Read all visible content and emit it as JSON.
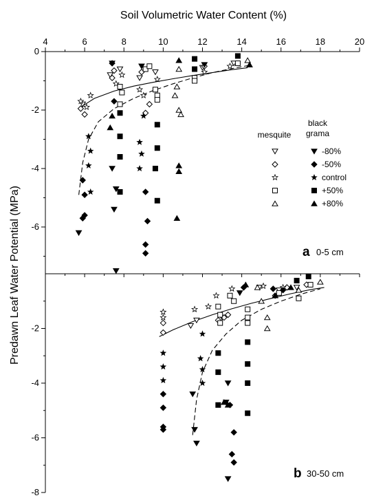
{
  "chart_data": [
    {
      "panel": "a",
      "panel_label": "0-5 cm",
      "type": "scatter",
      "xlabel": "Soil Volumetric Water Content (%)",
      "ylabel": "Predawn Leaf Water Potential (MPa)",
      "xlim": [
        4,
        20
      ],
      "ylim": [
        -7.6,
        0
      ],
      "x_ticks": [
        4,
        6,
        8,
        10,
        12,
        14,
        16,
        18,
        20
      ],
      "y_ticks": [
        0,
        -2,
        -4,
        -6
      ],
      "x_axis_position": "top",
      "legend": {
        "position": "right-middle",
        "headers": [
          "mesquite",
          "black grama"
        ],
        "treatments": [
          "-80%",
          "-50%",
          "control",
          "+50%",
          "+80%"
        ]
      },
      "series": [
        {
          "species": "mesquite",
          "treatment": "-80%",
          "marker": "triangle-down-open",
          "points": [
            [
              5.9,
              -1.8
            ],
            [
              7.3,
              -0.8
            ],
            [
              7.8,
              -0.6
            ],
            [
              8.8,
              -0.9
            ],
            [
              9.6,
              -0.7
            ],
            [
              12.0,
              -0.55
            ],
            [
              13.6,
              -0.4
            ]
          ]
        },
        {
          "species": "mesquite",
          "treatment": "-50%",
          "marker": "diamond-open",
          "points": [
            [
              5.8,
              -1.95
            ],
            [
              6.0,
              -2.15
            ],
            [
              7.4,
              -0.9
            ],
            [
              7.5,
              -0.65
            ],
            [
              8.9,
              -0.7
            ],
            [
              9.1,
              -2.1
            ],
            [
              9.3,
              -1.8
            ],
            [
              12.1,
              -0.5
            ]
          ]
        },
        {
          "species": "mesquite",
          "treatment": "control",
          "marker": "star-open",
          "points": [
            [
              5.8,
              -1.7
            ],
            [
              6.1,
              -1.9
            ],
            [
              6.3,
              -1.5
            ],
            [
              7.6,
              -1.1
            ],
            [
              7.9,
              -0.8
            ],
            [
              8.8,
              -1.3
            ],
            [
              9.0,
              -1.5
            ],
            [
              9.7,
              -0.95
            ],
            [
              12.1,
              -0.7
            ],
            [
              13.4,
              -0.5
            ]
          ]
        },
        {
          "species": "mesquite",
          "treatment": "+50%",
          "marker": "square-open",
          "points": [
            [
              7.8,
              -1.2
            ],
            [
              7.9,
              -1.4
            ],
            [
              7.8,
              -1.8
            ],
            [
              9.1,
              -0.6
            ],
            [
              9.3,
              -0.5
            ],
            [
              9.6,
              -1.3
            ],
            [
              9.7,
              -1.5
            ],
            [
              9.7,
              -1.65
            ],
            [
              11.6,
              -0.9
            ],
            [
              11.6,
              -1.0
            ],
            [
              13.8,
              -0.4
            ]
          ]
        },
        {
          "species": "mesquite",
          "treatment": "+80%",
          "marker": "triangle-up-open",
          "points": [
            [
              10.8,
              -0.6
            ],
            [
              10.7,
              -1.2
            ],
            [
              10.6,
              -1.5
            ],
            [
              10.8,
              -2.0
            ],
            [
              10.9,
              -2.15
            ],
            [
              14.3,
              -0.3
            ]
          ]
        },
        {
          "species": "black grama",
          "treatment": "-80%",
          "marker": "triangle-down-filled",
          "points": [
            [
              5.7,
              -6.2
            ],
            [
              7.5,
              -5.4
            ],
            [
              7.6,
              -7.5
            ],
            [
              7.4,
              -4.0
            ],
            [
              7.6,
              -4.7
            ],
            [
              7.4,
              -0.4
            ],
            [
              8.9,
              -0.5
            ],
            [
              12.1,
              -0.45
            ]
          ]
        },
        {
          "species": "black grama",
          "treatment": "-50%",
          "marker": "diamond-filled",
          "points": [
            [
              5.9,
              -4.4
            ],
            [
              6.0,
              -4.9
            ],
            [
              5.9,
              -5.7
            ],
            [
              6.0,
              -5.6
            ],
            [
              7.4,
              -0.4
            ],
            [
              9.1,
              -4.8
            ],
            [
              9.2,
              -5.8
            ],
            [
              9.1,
              -6.6
            ],
            [
              9.1,
              -6.9
            ],
            [
              7.5,
              -1.7
            ]
          ]
        },
        {
          "species": "black grama",
          "treatment": "control",
          "marker": "star-filled",
          "points": [
            [
              6.2,
              -2.9
            ],
            [
              6.3,
              -3.4
            ],
            [
              6.2,
              -3.9
            ],
            [
              6.3,
              -4.8
            ],
            [
              8.8,
              -3.1
            ],
            [
              8.9,
              -3.5
            ],
            [
              8.8,
              -4.0
            ],
            [
              9.0,
              -2.2
            ]
          ]
        },
        {
          "species": "black grama",
          "treatment": "+50%",
          "marker": "square-filled",
          "points": [
            [
              7.8,
              -2.1
            ],
            [
              7.8,
              -2.9
            ],
            [
              7.8,
              -3.6
            ],
            [
              7.8,
              -4.8
            ],
            [
              9.7,
              -2.5
            ],
            [
              9.7,
              -3.3
            ],
            [
              9.6,
              -4.0
            ],
            [
              9.7,
              -5.1
            ],
            [
              11.6,
              -0.25
            ],
            [
              11.6,
              -0.6
            ],
            [
              13.8,
              -0.15
            ]
          ]
        },
        {
          "species": "black grama",
          "treatment": "+80%",
          "marker": "triangle-up-filled",
          "points": [
            [
              7.4,
              -2.2
            ],
            [
              7.3,
              -2.6
            ],
            [
              10.8,
              -0.3
            ],
            [
              10.8,
              -3.9
            ],
            [
              10.8,
              -4.1
            ],
            [
              10.7,
              -5.7
            ],
            [
              14.4,
              -0.45
            ]
          ]
        }
      ],
      "fits": [
        {
          "style": "solid",
          "points": [
            [
              5.8,
              -1.9
            ],
            [
              6.5,
              -1.6
            ],
            [
              7.5,
              -1.35
            ],
            [
              8.5,
              -1.18
            ],
            [
              9.5,
              -1.05
            ],
            [
              10.5,
              -0.93
            ],
            [
              11.5,
              -0.82
            ],
            [
              12.5,
              -0.72
            ],
            [
              13.5,
              -0.62
            ],
            [
              14.3,
              -0.55
            ]
          ]
        },
        {
          "style": "dashed",
          "points": [
            [
              5.7,
              -4.9
            ],
            [
              5.9,
              -3.8
            ],
            [
              6.2,
              -3.0
            ],
            [
              6.7,
              -2.4
            ],
            [
              7.5,
              -1.95
            ],
            [
              8.5,
              -1.6
            ],
            [
              9.5,
              -1.33
            ],
            [
              10.5,
              -1.1
            ],
            [
              11.5,
              -0.9
            ],
            [
              12.5,
              -0.72
            ],
            [
              13.5,
              -0.58
            ],
            [
              14.3,
              -0.48
            ]
          ]
        }
      ]
    },
    {
      "panel": "b",
      "panel_label": "30-50 cm",
      "type": "scatter",
      "xlabel": "Soil Volumetric Water Content (%)",
      "ylabel": "Predawn Leaf Water Potential (MPa)",
      "xlim": [
        4,
        20
      ],
      "ylim": [
        -8,
        0
      ],
      "y_ticks": [
        -2,
        -4,
        -6,
        -8
      ],
      "series": [
        {
          "species": "mesquite",
          "treatment": "-80%",
          "marker": "triangle-down-open",
          "points": [
            [
              11.4,
              -1.9
            ],
            [
              11.7,
              -1.7
            ],
            [
              13.0,
              -1.6
            ],
            [
              14.9,
              -0.5
            ],
            [
              15.9,
              -0.6
            ],
            [
              16.8,
              -0.5
            ]
          ]
        },
        {
          "species": "mesquite",
          "treatment": "-50%",
          "marker": "diamond-open",
          "points": [
            [
              10.0,
              -1.8
            ],
            [
              10.0,
              -2.15
            ],
            [
              12.8,
              -1.7
            ],
            [
              13.1,
              -1.6
            ],
            [
              13.3,
              -1.5
            ],
            [
              15.7,
              -0.8
            ],
            [
              16.3,
              -0.5
            ],
            [
              17.3,
              -0.4
            ]
          ]
        },
        {
          "species": "mesquite",
          "treatment": "control",
          "marker": "star-open",
          "points": [
            [
              10.0,
              -1.4
            ],
            [
              10.0,
              -1.6
            ],
            [
              11.6,
              -1.3
            ],
            [
              12.3,
              -1.2
            ],
            [
              12.7,
              -0.8
            ],
            [
              13.5,
              -0.55
            ],
            [
              15.1,
              -0.45
            ],
            [
              16.1,
              -0.5
            ]
          ]
        },
        {
          "species": "mesquite",
          "treatment": "+50%",
          "marker": "square-open",
          "points": [
            [
              12.8,
              -1.2
            ],
            [
              12.9,
              -1.5
            ],
            [
              12.9,
              -1.8
            ],
            [
              13.4,
              -0.8
            ],
            [
              13.6,
              -1.0
            ],
            [
              14.3,
              -1.3
            ],
            [
              14.3,
              -1.6
            ],
            [
              14.3,
              -1.8
            ],
            [
              15.9,
              -0.7
            ],
            [
              16.9,
              -0.9
            ],
            [
              17.5,
              -0.4
            ]
          ]
        },
        {
          "species": "mesquite",
          "treatment": "+80%",
          "marker": "triangle-up-open",
          "points": [
            [
              14.8,
              -0.5
            ],
            [
              15.0,
              -1.0
            ],
            [
              15.3,
              -1.6
            ],
            [
              15.3,
              -2.0
            ],
            [
              16.9,
              -0.6
            ],
            [
              18.0,
              -0.3
            ]
          ]
        },
        {
          "species": "black grama",
          "treatment": "-80%",
          "marker": "triangle-down-filled",
          "points": [
            [
              11.5,
              -4.4
            ],
            [
              11.6,
              -5.7
            ],
            [
              11.7,
              -6.2
            ],
            [
              13.3,
              -4.0
            ],
            [
              13.2,
              -4.7
            ],
            [
              13.3,
              -7.5
            ],
            [
              13.9,
              -0.7
            ]
          ]
        },
        {
          "species": "black grama",
          "treatment": "-50%",
          "marker": "diamond-filled",
          "points": [
            [
              10.0,
              -4.4
            ],
            [
              10.0,
              -4.9
            ],
            [
              10.0,
              -5.6
            ],
            [
              10.0,
              -5.7
            ],
            [
              13.4,
              -4.8
            ],
            [
              13.6,
              -5.8
            ],
            [
              13.5,
              -6.6
            ],
            [
              13.6,
              -6.9
            ],
            [
              14.1,
              -0.5
            ],
            [
              15.6,
              -0.55
            ],
            [
              16.1,
              -0.6
            ]
          ]
        },
        {
          "species": "black grama",
          "treatment": "control",
          "marker": "star-filled",
          "points": [
            [
              10.0,
              -2.9
            ],
            [
              10.0,
              -3.4
            ],
            [
              10.0,
              -3.9
            ],
            [
              11.9,
              -3.1
            ],
            [
              12.0,
              -3.5
            ],
            [
              12.0,
              -4.0
            ],
            [
              12.0,
              -2.2
            ]
          ]
        },
        {
          "species": "black grama",
          "treatment": "+50%",
          "marker": "square-filled",
          "points": [
            [
              12.8,
              -2.9
            ],
            [
              12.8,
              -3.6
            ],
            [
              12.8,
              -4.8
            ],
            [
              14.3,
              -2.5
            ],
            [
              14.3,
              -3.3
            ],
            [
              14.3,
              -4.0
            ],
            [
              14.3,
              -5.1
            ],
            [
              16.8,
              -0.25
            ],
            [
              17.4,
              -0.1
            ]
          ]
        },
        {
          "species": "black grama",
          "treatment": "+80%",
          "marker": "triangle-up-filled",
          "points": [
            [
              13.1,
              -4.7
            ],
            [
              13.3,
              -4.8
            ],
            [
              14.2,
              -0.4
            ],
            [
              15.7,
              -0.8
            ],
            [
              16.5,
              -0.5
            ]
          ]
        }
      ],
      "fits": [
        {
          "style": "solid",
          "points": [
            [
              9.8,
              -2.3
            ],
            [
              10.5,
              -2.05
            ],
            [
              11.5,
              -1.75
            ],
            [
              12.5,
              -1.5
            ],
            [
              13.5,
              -1.28
            ],
            [
              14.5,
              -1.08
            ],
            [
              15.5,
              -0.9
            ],
            [
              16.5,
              -0.73
            ],
            [
              17.5,
              -0.58
            ],
            [
              18.2,
              -0.5
            ]
          ]
        },
        {
          "style": "dashed",
          "points": [
            [
              11.5,
              -5.9
            ],
            [
              11.7,
              -4.6
            ],
            [
              12.0,
              -3.6
            ],
            [
              12.5,
              -2.8
            ],
            [
              13.2,
              -2.2
            ],
            [
              14.0,
              -1.7
            ],
            [
              15.0,
              -1.3
            ],
            [
              16.0,
              -1.0
            ],
            [
              17.0,
              -0.75
            ],
            [
              18.0,
              -0.55
            ]
          ]
        }
      ]
    }
  ]
}
